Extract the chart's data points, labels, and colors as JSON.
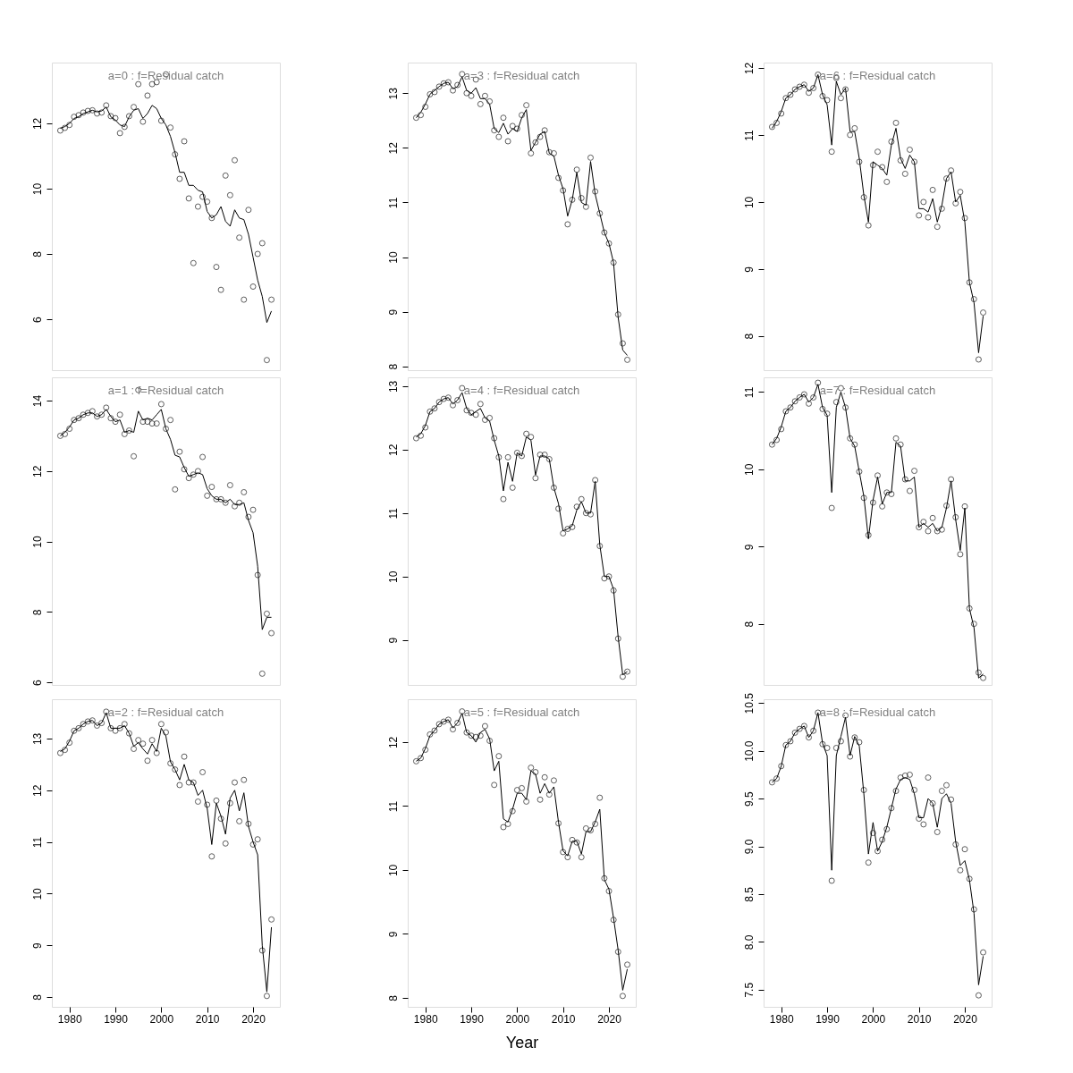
{
  "chart_data": [
    {
      "type": "line",
      "annotations": [
        "a=0 : f=Residual catch"
      ],
      "x": [
        1978,
        1979,
        1980,
        1981,
        1982,
        1983,
        1984,
        1985,
        1986,
        1987,
        1988,
        1989,
        1990,
        1991,
        1992,
        1993,
        1994,
        1995,
        1996,
        1997,
        1998,
        1999,
        2000,
        2001,
        2002,
        2003,
        2004,
        2005,
        2006,
        2007,
        2008,
        2009,
        2010,
        2011,
        2012,
        2013,
        2014,
        2015,
        2016,
        2017,
        2018,
        2019,
        2020,
        2021,
        2022,
        2023,
        2024
      ],
      "xlim": [
        1976.16,
        2025.84
      ],
      "xticks": [
        1980,
        1990,
        2000,
        2010,
        2020
      ],
      "ylim": [
        4.44,
        13.86
      ],
      "yticks": [
        6,
        8,
        10,
        12
      ],
      "tick_labels": "y",
      "series": [
        {
          "type": "scatter",
          "marker": "circle",
          "color": "#000000",
          "values": [
            11.78,
            11.86,
            11.95,
            12.2,
            12.25,
            12.33,
            12.38,
            12.4,
            12.3,
            12.33,
            12.55,
            12.22,
            12.16,
            11.7,
            11.89,
            12.22,
            12.5,
            13.2,
            12.05,
            12.85,
            13.2,
            13.26,
            12.08,
            13.5,
            11.87,
            11.05,
            10.3,
            11.45,
            9.7,
            7.72,
            9.45,
            9.75,
            9.6,
            9.1,
            7.6,
            6.9,
            10.4,
            9.8,
            10.87,
            8.5,
            6.6,
            9.35,
            7.0,
            8.0,
            8.33,
            4.75,
            6.6
          ]
        },
        {
          "type": "line",
          "color": "#000000",
          "values": [
            11.85,
            11.9,
            12.0,
            12.15,
            12.2,
            12.3,
            12.35,
            12.4,
            12.35,
            12.38,
            12.5,
            12.2,
            12.1,
            11.95,
            11.9,
            12.2,
            12.4,
            12.45,
            12.15,
            12.3,
            12.55,
            12.45,
            12.15,
            11.95,
            11.6,
            11.1,
            10.5,
            10.5,
            10.1,
            10.1,
            9.95,
            9.9,
            9.3,
            9.1,
            9.2,
            9.45,
            9.0,
            8.85,
            9.35,
            9.1,
            9.05,
            8.6,
            7.9,
            7.2,
            6.7,
            5.9,
            6.25
          ]
        }
      ]
    },
    {
      "type": "line",
      "annotations": [
        "a=3 : f=Residual catch"
      ],
      "x": [
        1978,
        1979,
        1980,
        1981,
        1982,
        1983,
        1984,
        1985,
        1986,
        1987,
        1988,
        1989,
        1990,
        1991,
        1992,
        1993,
        1994,
        1995,
        1996,
        1997,
        1998,
        1999,
        2000,
        2001,
        2002,
        2003,
        2004,
        2005,
        2006,
        2007,
        2008,
        2009,
        2010,
        2011,
        2012,
        2013,
        2014,
        2015,
        2016,
        2017,
        2018,
        2019,
        2020,
        2021,
        2022,
        2023,
        2024
      ],
      "xlim": [
        1976.16,
        2025.84
      ],
      "xticks": [
        1980,
        1990,
        2000,
        2010,
        2020
      ],
      "ylim": [
        7.93,
        13.56
      ],
      "yticks": [
        8,
        9,
        10,
        11,
        12,
        13
      ],
      "tick_labels": "y",
      "series": [
        {
          "type": "scatter",
          "marker": "circle",
          "color": "#000000",
          "values": [
            12.55,
            12.6,
            12.75,
            12.98,
            13.02,
            13.12,
            13.18,
            13.2,
            13.05,
            13.15,
            13.35,
            13.0,
            12.95,
            13.25,
            12.8,
            12.95,
            12.85,
            12.32,
            12.2,
            12.55,
            12.12,
            12.4,
            12.35,
            12.6,
            12.78,
            11.9,
            12.1,
            12.2,
            12.32,
            11.92,
            11.9,
            11.45,
            11.22,
            10.6,
            11.05,
            11.6,
            11.08,
            10.92,
            11.82,
            11.2,
            10.8,
            10.45,
            10.25,
            9.9,
            8.95,
            8.42,
            8.12
          ]
        },
        {
          "type": "line",
          "color": "#000000",
          "values": [
            12.55,
            12.65,
            12.8,
            12.98,
            13.05,
            13.12,
            13.18,
            13.2,
            13.08,
            13.12,
            13.3,
            13.05,
            13.0,
            13.1,
            12.9,
            12.9,
            12.8,
            12.35,
            12.28,
            12.45,
            12.25,
            12.35,
            12.3,
            12.55,
            12.7,
            11.95,
            12.1,
            12.25,
            12.3,
            11.9,
            11.85,
            11.5,
            11.25,
            10.75,
            11.05,
            11.55,
            11.0,
            10.95,
            11.75,
            11.15,
            10.8,
            10.45,
            10.25,
            9.9,
            8.9,
            8.3,
            8.2
          ]
        }
      ]
    },
    {
      "type": "line",
      "annotations": [
        "a=6 : f=Residual catch"
      ],
      "x": [
        1978,
        1979,
        1980,
        1981,
        1982,
        1983,
        1984,
        1985,
        1986,
        1987,
        1988,
        1989,
        1990,
        1991,
        1992,
        1993,
        1994,
        1995,
        1996,
        1997,
        1998,
        1999,
        2000,
        2001,
        2002,
        2003,
        2004,
        2005,
        2006,
        2007,
        2008,
        2009,
        2010,
        2011,
        2012,
        2013,
        2014,
        2015,
        2016,
        2017,
        2018,
        2019,
        2020,
        2021,
        2022,
        2023,
        2024
      ],
      "xlim": [
        1976.16,
        2025.84
      ],
      "xticks": [
        1980,
        1990,
        2000,
        2010,
        2020
      ],
      "ylim": [
        7.49,
        12.08
      ],
      "yticks": [
        8,
        9,
        10,
        11,
        12
      ],
      "tick_labels": "y",
      "series": [
        {
          "type": "scatter",
          "marker": "circle",
          "color": "#000000",
          "values": [
            11.12,
            11.18,
            11.32,
            11.55,
            11.6,
            11.68,
            11.72,
            11.75,
            11.63,
            11.7,
            11.9,
            11.58,
            11.52,
            10.75,
            11.85,
            11.55,
            11.68,
            11.0,
            11.1,
            10.6,
            10.07,
            9.65,
            10.55,
            10.75,
            10.52,
            10.3,
            10.9,
            11.18,
            10.62,
            10.42,
            10.78,
            10.6,
            9.8,
            10.0,
            9.77,
            10.18,
            9.63,
            9.9,
            10.35,
            10.47,
            9.98,
            10.15,
            9.76,
            8.8,
            8.55,
            7.65,
            8.35
          ]
        },
        {
          "type": "line",
          "color": "#000000",
          "values": [
            11.1,
            11.2,
            11.35,
            11.55,
            11.6,
            11.68,
            11.72,
            11.75,
            11.65,
            11.7,
            11.9,
            11.6,
            11.45,
            10.85,
            11.8,
            11.6,
            11.7,
            11.05,
            11.05,
            10.65,
            10.1,
            9.7,
            10.6,
            10.55,
            10.5,
            10.4,
            10.85,
            11.1,
            10.65,
            10.5,
            10.7,
            10.6,
            9.9,
            9.9,
            9.85,
            10.05,
            9.7,
            9.95,
            10.35,
            10.45,
            10.0,
            10.1,
            9.7,
            8.8,
            8.5,
            7.75,
            8.3
          ]
        }
      ]
    },
    {
      "type": "line",
      "annotations": [
        "a=1 : f=Residual catch"
      ],
      "x": [
        1978,
        1979,
        1980,
        1981,
        1982,
        1983,
        1984,
        1985,
        1986,
        1987,
        1988,
        1989,
        1990,
        1991,
        1992,
        1993,
        1994,
        1995,
        1996,
        1997,
        1998,
        1999,
        2000,
        2001,
        2002,
        2003,
        2004,
        2005,
        2006,
        2007,
        2008,
        2009,
        2010,
        2011,
        2012,
        2013,
        2014,
        2015,
        2016,
        2017,
        2018,
        2019,
        2020,
        2021,
        2022,
        2023,
        2024
      ],
      "xlim": [
        1976.16,
        2025.84
      ],
      "xticks": [
        1980,
        1990,
        2000,
        2010,
        2020
      ],
      "ylim": [
        5.93,
        14.66
      ],
      "yticks": [
        6,
        8,
        10,
        12,
        14
      ],
      "tick_labels": "y",
      "series": [
        {
          "type": "scatter",
          "marker": "circle",
          "color": "#000000",
          "values": [
            13.0,
            13.05,
            13.2,
            13.45,
            13.5,
            13.6,
            13.65,
            13.7,
            13.55,
            13.6,
            13.8,
            13.5,
            13.4,
            13.6,
            13.05,
            13.15,
            12.42,
            14.3,
            13.4,
            13.4,
            13.35,
            13.35,
            13.9,
            13.2,
            13.45,
            11.48,
            12.55,
            12.05,
            11.8,
            11.9,
            12.0,
            12.4,
            11.3,
            11.55,
            11.2,
            11.2,
            11.1,
            11.6,
            11.0,
            11.1,
            11.4,
            10.7,
            10.9,
            9.05,
            6.25,
            7.95,
            7.4
          ]
        },
        {
          "type": "line",
          "color": "#000000",
          "values": [
            13.0,
            13.1,
            13.25,
            13.45,
            13.5,
            13.6,
            13.65,
            13.65,
            13.55,
            13.6,
            13.75,
            13.55,
            13.4,
            13.45,
            13.1,
            13.15,
            13.1,
            13.7,
            13.45,
            13.5,
            13.45,
            13.6,
            13.75,
            13.2,
            12.9,
            12.45,
            12.4,
            12.1,
            11.85,
            11.9,
            11.95,
            11.9,
            11.5,
            11.3,
            11.2,
            11.2,
            11.1,
            11.2,
            11.05,
            11.05,
            11.1,
            10.6,
            10.25,
            9.3,
            7.5,
            7.85,
            7.85
          ]
        }
      ]
    },
    {
      "type": "line",
      "annotations": [
        "a=4 : f=Residual catch"
      ],
      "x": [
        1978,
        1979,
        1980,
        1981,
        1982,
        1983,
        1984,
        1985,
        1986,
        1987,
        1988,
        1989,
        1990,
        1991,
        1992,
        1993,
        1994,
        1995,
        1996,
        1997,
        1998,
        1999,
        2000,
        2001,
        2002,
        2003,
        2004,
        2005,
        2006,
        2007,
        2008,
        2009,
        2010,
        2011,
        2012,
        2013,
        2014,
        2015,
        2016,
        2017,
        2018,
        2019,
        2020,
        2021,
        2022,
        2023,
        2024
      ],
      "xlim": [
        1976.16,
        2025.84
      ],
      "xticks": [
        1980,
        1990,
        2000,
        2010,
        2020
      ],
      "ylim": [
        8.29,
        13.14
      ],
      "yticks": [
        9,
        10,
        11,
        12,
        13
      ],
      "tick_labels": "y",
      "series": [
        {
          "type": "scatter",
          "marker": "circle",
          "color": "#000000",
          "values": [
            12.18,
            12.22,
            12.35,
            12.6,
            12.65,
            12.75,
            12.8,
            12.82,
            12.7,
            12.78,
            12.97,
            12.62,
            12.58,
            12.55,
            12.72,
            12.47,
            12.5,
            12.18,
            11.88,
            11.22,
            11.88,
            11.4,
            11.95,
            11.9,
            12.25,
            12.2,
            11.55,
            11.92,
            11.92,
            11.85,
            11.4,
            11.07,
            10.68,
            10.75,
            10.78,
            11.1,
            11.22,
            11.0,
            10.98,
            11.52,
            10.48,
            9.97,
            10.0,
            9.78,
            9.02,
            8.42,
            8.5
          ]
        },
        {
          "type": "line",
          "color": "#000000",
          "values": [
            12.2,
            12.25,
            12.38,
            12.6,
            12.65,
            12.75,
            12.8,
            12.82,
            12.72,
            12.78,
            12.9,
            12.65,
            12.55,
            12.6,
            12.65,
            12.5,
            12.45,
            12.15,
            11.9,
            11.35,
            11.8,
            11.5,
            11.95,
            11.9,
            12.2,
            12.15,
            11.6,
            11.9,
            11.9,
            11.85,
            11.4,
            11.15,
            10.72,
            10.75,
            10.8,
            11.05,
            11.18,
            11.0,
            11.0,
            11.5,
            10.5,
            10.0,
            10.0,
            9.8,
            9.05,
            8.45,
            8.5
          ]
        }
      ]
    },
    {
      "type": "line",
      "annotations": [
        "a=7 : f=Residual catch"
      ],
      "x": [
        1978,
        1979,
        1980,
        1981,
        1982,
        1983,
        1984,
        1985,
        1986,
        1987,
        1988,
        1989,
        1990,
        1991,
        1992,
        1993,
        1994,
        1995,
        1996,
        1997,
        1998,
        1999,
        2000,
        2001,
        2002,
        2003,
        2004,
        2005,
        2006,
        2007,
        2008,
        2009,
        2010,
        2011,
        2012,
        2013,
        2014,
        2015,
        2016,
        2017,
        2018,
        2019,
        2020,
        2021,
        2022,
        2023,
        2024
      ],
      "xlim": [
        1976.16,
        2025.84
      ],
      "xticks": [
        1980,
        1990,
        2000,
        2010,
        2020
      ],
      "ylim": [
        7.21,
        11.19
      ],
      "yticks": [
        8,
        9,
        10,
        11
      ],
      "tick_labels": "y",
      "series": [
        {
          "type": "scatter",
          "marker": "circle",
          "color": "#000000",
          "values": [
            10.32,
            10.38,
            10.52,
            10.75,
            10.8,
            10.88,
            10.93,
            10.97,
            10.85,
            10.93,
            11.12,
            10.78,
            10.72,
            9.5,
            10.87,
            11.05,
            10.8,
            10.4,
            10.32,
            9.97,
            9.63,
            9.15,
            9.57,
            9.92,
            9.52,
            9.7,
            9.68,
            10.4,
            10.32,
            9.87,
            9.72,
            9.98,
            9.25,
            9.32,
            9.2,
            9.37,
            9.2,
            9.22,
            9.53,
            9.87,
            9.38,
            8.9,
            9.52,
            8.2,
            8.0,
            7.37,
            7.3
          ]
        },
        {
          "type": "line",
          "color": "#000000",
          "values": [
            10.32,
            10.4,
            10.55,
            10.75,
            10.8,
            10.88,
            10.93,
            10.97,
            10.87,
            10.93,
            11.1,
            10.8,
            10.7,
            9.7,
            10.8,
            11.0,
            10.8,
            10.4,
            10.3,
            9.97,
            9.65,
            9.1,
            9.6,
            9.9,
            9.55,
            9.7,
            9.7,
            10.35,
            10.3,
            9.85,
            9.85,
            9.9,
            9.25,
            9.3,
            9.25,
            9.3,
            9.2,
            9.25,
            9.5,
            9.85,
            9.35,
            8.95,
            9.5,
            8.2,
            7.95,
            7.3,
            7.35
          ]
        }
      ]
    },
    {
      "type": "line",
      "annotations": [
        "a=2 : f=Residual catch"
      ],
      "x": [
        1978,
        1979,
        1980,
        1981,
        1982,
        1983,
        1984,
        1985,
        1986,
        1987,
        1988,
        1989,
        1990,
        1991,
        1992,
        1993,
        1994,
        1995,
        1996,
        1997,
        1998,
        1999,
        2000,
        2001,
        2002,
        2003,
        2004,
        2005,
        2006,
        2007,
        2008,
        2009,
        2010,
        2011,
        2012,
        2013,
        2014,
        2015,
        2016,
        2017,
        2018,
        2019,
        2020,
        2021,
        2022,
        2023,
        2024
      ],
      "xlim": [
        1976.16,
        2025.84
      ],
      "xticks": [
        1980,
        1990,
        2000,
        2010,
        2020
      ],
      "ylim": [
        7.81,
        13.76
      ],
      "yticks": [
        8,
        9,
        10,
        11,
        12,
        13
      ],
      "series": [
        {
          "type": "scatter",
          "marker": "circle",
          "color": "#000000",
          "values": [
            12.72,
            12.78,
            12.92,
            13.15,
            13.2,
            13.28,
            13.33,
            13.35,
            13.25,
            13.3,
            13.52,
            13.2,
            13.15,
            13.2,
            13.28,
            13.1,
            12.8,
            12.97,
            12.9,
            12.57,
            12.97,
            12.72,
            13.28,
            13.12,
            12.52,
            12.4,
            12.1,
            12.65,
            12.15,
            12.15,
            11.78,
            12.35,
            11.72,
            10.72,
            11.8,
            11.45,
            10.97,
            11.75,
            12.15,
            11.4,
            12.2,
            11.35,
            10.95,
            11.05,
            8.9,
            8.02,
            9.5
          ]
        },
        {
          "type": "line",
          "color": "#000000",
          "values": [
            12.75,
            12.8,
            12.95,
            13.15,
            13.2,
            13.28,
            13.33,
            13.35,
            13.25,
            13.3,
            13.5,
            13.2,
            13.2,
            13.2,
            13.25,
            13.1,
            12.85,
            12.92,
            12.8,
            12.7,
            12.9,
            12.75,
            13.2,
            13.05,
            12.55,
            12.4,
            12.2,
            12.5,
            12.2,
            12.15,
            11.9,
            12.0,
            11.65,
            10.95,
            11.75,
            11.5,
            11.15,
            11.85,
            12.0,
            11.6,
            11.95,
            11.3,
            11.0,
            10.75,
            9.0,
            8.1,
            9.35
          ]
        }
      ]
    },
    {
      "type": "line",
      "annotations": [
        "a=5 : f=Residual catch"
      ],
      "xlabel": "Year",
      "x": [
        1978,
        1979,
        1980,
        1981,
        1982,
        1983,
        1984,
        1985,
        1986,
        1987,
        1988,
        1989,
        1990,
        1991,
        1992,
        1993,
        1994,
        1995,
        1996,
        1997,
        1998,
        1999,
        2000,
        2001,
        2002,
        2003,
        2004,
        2005,
        2006,
        2007,
        2008,
        2009,
        2010,
        2011,
        2012,
        2013,
        2014,
        2015,
        2016,
        2017,
        2018,
        2019,
        2020,
        2021,
        2022,
        2023,
        2024
      ],
      "xlim": [
        1976.16,
        2025.84
      ],
      "xticks": [
        1980,
        1990,
        2000,
        2010,
        2020
      ],
      "ylim": [
        7.86,
        12.67
      ],
      "yticks": [
        8,
        9,
        10,
        11,
        12
      ],
      "series": [
        {
          "type": "scatter",
          "marker": "circle",
          "color": "#000000",
          "values": [
            11.7,
            11.75,
            11.88,
            12.12,
            12.18,
            12.28,
            12.32,
            12.35,
            12.2,
            12.3,
            12.48,
            12.15,
            12.1,
            12.08,
            12.1,
            12.25,
            12.02,
            11.33,
            11.78,
            10.67,
            10.72,
            10.92,
            11.25,
            11.28,
            11.07,
            11.6,
            11.53,
            11.1,
            11.45,
            11.18,
            11.4,
            10.73,
            10.28,
            10.2,
            10.47,
            10.43,
            10.2,
            10.65,
            10.62,
            10.72,
            11.13,
            9.87,
            9.67,
            9.22,
            8.72,
            8.03,
            8.52
          ]
        },
        {
          "type": "line",
          "color": "#000000",
          "values": [
            11.7,
            11.75,
            11.9,
            12.1,
            12.18,
            12.28,
            12.32,
            12.35,
            12.22,
            12.3,
            12.45,
            12.15,
            12.1,
            12.0,
            12.15,
            12.2,
            12.05,
            11.55,
            11.7,
            10.8,
            10.75,
            10.95,
            11.2,
            11.2,
            11.1,
            11.55,
            11.5,
            11.2,
            11.35,
            11.2,
            11.3,
            10.75,
            10.3,
            10.22,
            10.45,
            10.45,
            10.25,
            10.6,
            10.6,
            10.75,
            10.95,
            9.85,
            9.7,
            9.25,
            8.75,
            8.12,
            8.45
          ]
        }
      ]
    },
    {
      "type": "line",
      "annotations": [
        "a=8 : f=Residual catch"
      ],
      "x": [
        1978,
        1979,
        1980,
        1981,
        1982,
        1983,
        1984,
        1985,
        1986,
        1987,
        1988,
        1989,
        1990,
        1991,
        1992,
        1993,
        1994,
        1995,
        1996,
        1997,
        1998,
        1999,
        2000,
        2001,
        2002,
        2003,
        2004,
        2005,
        2006,
        2007,
        2008,
        2009,
        2010,
        2011,
        2012,
        2013,
        2014,
        2015,
        2016,
        2017,
        2018,
        2019,
        2020,
        2021,
        2022,
        2023,
        2024
      ],
      "xlim": [
        1976.16,
        2025.84
      ],
      "xticks": [
        1980,
        1990,
        2000,
        2010,
        2020
      ],
      "ylim": [
        7.32,
        10.54
      ],
      "yticks": [
        {
          "value": 7.5,
          "label": "7.5"
        },
        {
          "value": 8,
          "label": "8.0"
        },
        {
          "value": 8.5,
          "label": "8.5"
        },
        {
          "value": 9,
          "label": "9.0"
        },
        {
          "value": 9.5,
          "label": "9.5"
        },
        {
          "value": 10,
          "label": "10.0"
        },
        {
          "value": 10.5,
          "label": "10.5"
        }
      ],
      "series": [
        {
          "type": "scatter",
          "marker": "circle",
          "color": "#000000",
          "values": [
            9.67,
            9.71,
            9.84,
            10.06,
            10.1,
            10.19,
            10.23,
            10.26,
            10.14,
            10.21,
            10.4,
            10.07,
            10.03,
            8.64,
            10.03,
            10.1,
            10.37,
            9.94,
            10.14,
            10.09,
            9.59,
            8.83,
            9.14,
            8.95,
            9.07,
            9.18,
            9.4,
            9.58,
            9.72,
            9.74,
            9.75,
            9.59,
            9.29,
            9.23,
            9.72,
            9.45,
            9.15,
            9.58,
            9.64,
            9.49,
            9.02,
            8.75,
            8.97,
            8.66,
            8.34,
            7.44,
            7.89
          ]
        },
        {
          "type": "line",
          "color": "#000000",
          "values": [
            9.67,
            9.71,
            9.84,
            10.06,
            10.1,
            10.19,
            10.23,
            10.26,
            10.14,
            10.21,
            10.4,
            10.08,
            9.95,
            8.75,
            9.95,
            10.15,
            10.35,
            9.95,
            10.15,
            10.05,
            9.55,
            8.92,
            9.25,
            8.95,
            9.05,
            9.2,
            9.4,
            9.6,
            9.7,
            9.72,
            9.7,
            9.55,
            9.3,
            9.3,
            9.5,
            9.45,
            9.2,
            9.5,
            9.55,
            9.45,
            9.05,
            8.8,
            8.85,
            8.65,
            8.3,
            7.55,
            7.85
          ]
        }
      ]
    }
  ]
}
